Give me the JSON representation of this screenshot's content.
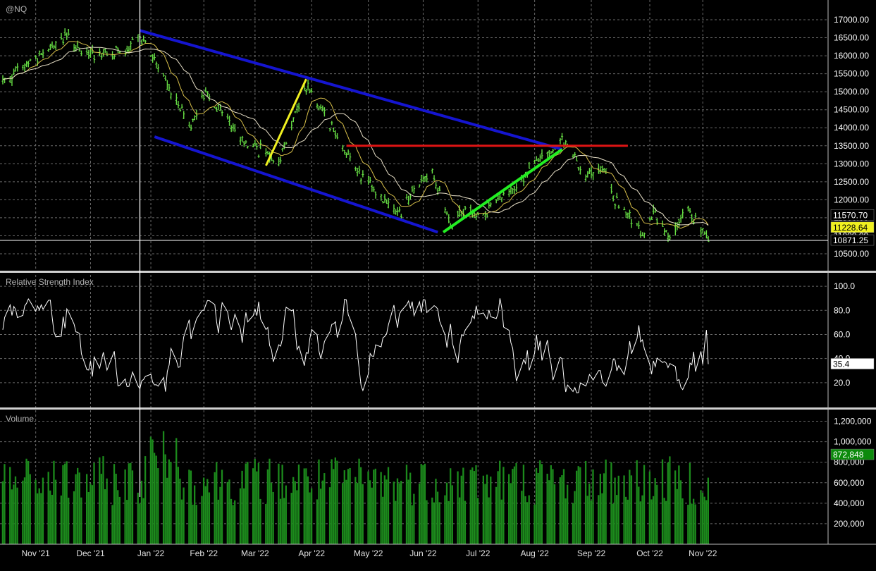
{
  "colors": {
    "background": "#000000",
    "grid": "#6a6a6a",
    "price_bar": "#66dd44",
    "ma_fast": "#d8c04a",
    "ma_slow": "#e8e0c8",
    "channel": "#1515d0",
    "resistance": "#e01414",
    "swing_down": "#f0f020",
    "swing_up": "#22ee22",
    "rsi_line": "#ffffff",
    "volume_bar": "#1c8a1c",
    "cursor": "#ffffff",
    "last_price_tag": "#f0f020",
    "volume_tag": "#0c8a0c"
  },
  "chart_data": [
    {
      "type": "bar",
      "title": "@NQ",
      "ylim": [
        10050,
        17450
      ],
      "yticks": [
        "17000.00",
        "16500.00",
        "16000.00",
        "15500.00",
        "15000.00",
        "14500.00",
        "14000.00",
        "13500.00",
        "13000.00",
        "12500.00",
        "12000.00",
        "11500.00",
        "11000.00",
        "10500.00"
      ],
      "price_tags": {
        "ma_slow": "11570.70",
        "last": "11228.64",
        "cursor": "10871.25"
      },
      "anchors": [
        [
          "2021-10-15",
          15300
        ],
        [
          "2021-10-29",
          15850
        ],
        [
          "2021-11-19",
          16550
        ],
        [
          "2021-11-26",
          16000
        ],
        [
          "2021-12-06",
          16100
        ],
        [
          "2021-12-22",
          16100
        ],
        [
          "2021-12-28",
          16600
        ],
        [
          "2022-01-10",
          15400
        ],
        [
          "2022-01-24",
          13950
        ],
        [
          "2022-02-02",
          15050
        ],
        [
          "2022-02-23",
          13600
        ],
        [
          "2022-03-07",
          13300
        ],
        [
          "2022-03-14",
          13100
        ],
        [
          "2022-03-29",
          15200
        ],
        [
          "2022-04-06",
          14600
        ],
        [
          "2022-04-27",
          12700
        ],
        [
          "2022-05-11",
          12000
        ],
        [
          "2022-05-20",
          11600
        ],
        [
          "2022-05-26",
          12300
        ],
        [
          "2022-06-06",
          12800
        ],
        [
          "2022-06-16",
          11200
        ],
        [
          "2022-06-22",
          11700
        ],
        [
          "2022-07-01",
          11600
        ],
        [
          "2022-07-15",
          12000
        ],
        [
          "2022-08-01",
          13000
        ],
        [
          "2022-08-16",
          13650
        ],
        [
          "2022-08-29",
          12700
        ],
        [
          "2022-09-09",
          12800
        ],
        [
          "2022-09-13",
          12000
        ],
        [
          "2022-09-30",
          11000
        ],
        [
          "2022-10-05",
          11600
        ],
        [
          "2022-10-13",
          11000
        ],
        [
          "2022-10-25",
          11700
        ],
        [
          "2022-11-03",
          10900
        ]
      ],
      "moving_averages": [
        "fast",
        "slow"
      ],
      "annotations": {
        "channel_upper": [
          [
            "2021-12-28",
            16700
          ],
          [
            "2022-08-16",
            13400
          ]
        ],
        "channel_lower": [
          [
            "2022-01-05",
            13750
          ],
          [
            "2022-06-09",
            11100
          ]
        ],
        "resistance": [
          [
            "2022-04-20",
            13500
          ],
          [
            "2022-09-21",
            13500
          ]
        ],
        "swing_down_line": [
          [
            "2022-03-07",
            12950
          ],
          [
            "2022-03-29",
            15350
          ]
        ],
        "swing_up_line": [
          [
            "2022-06-12",
            11100
          ],
          [
            "2022-08-16",
            13400
          ]
        ]
      }
    },
    {
      "type": "line",
      "title": "Relative Strength Index",
      "ylim": [
        0,
        110
      ],
      "yticks": [
        "100.0",
        "80.0",
        "60.0",
        "40.0",
        "20.0"
      ],
      "last_value": "35.4"
    },
    {
      "type": "bar",
      "title": "Volume",
      "ylim": [
        0,
        1300000
      ],
      "yticks": [
        "1,200,000",
        "1,000,000",
        "800,000",
        "600,000",
        "400,000",
        "200,000"
      ],
      "last_value": "872,848"
    }
  ],
  "x_axis": {
    "start": "2021-10-14",
    "end": "2022-11-04",
    "labels": [
      {
        "date": "2021-11-01",
        "text": "Nov '21"
      },
      {
        "date": "2021-12-01",
        "text": "Dec '21"
      },
      {
        "date": "2022-01-03",
        "text": "Jan '22"
      },
      {
        "date": "2022-02-01",
        "text": "Feb '22"
      },
      {
        "date": "2022-03-01",
        "text": "Mar '22"
      },
      {
        "date": "2022-04-01",
        "text": "Apr '22"
      },
      {
        "date": "2022-05-02",
        "text": "May '22"
      },
      {
        "date": "2022-06-01",
        "text": "Jun '22"
      },
      {
        "date": "2022-07-01",
        "text": "Jul '22"
      },
      {
        "date": "2022-08-01",
        "text": "Aug '22"
      },
      {
        "date": "2022-09-01",
        "text": "Sep '22"
      },
      {
        "date": "2022-10-03",
        "text": "Oct '22"
      },
      {
        "date": "2022-11-01",
        "text": "Nov '22"
      }
    ],
    "cursor_date": "2021-12-28"
  }
}
